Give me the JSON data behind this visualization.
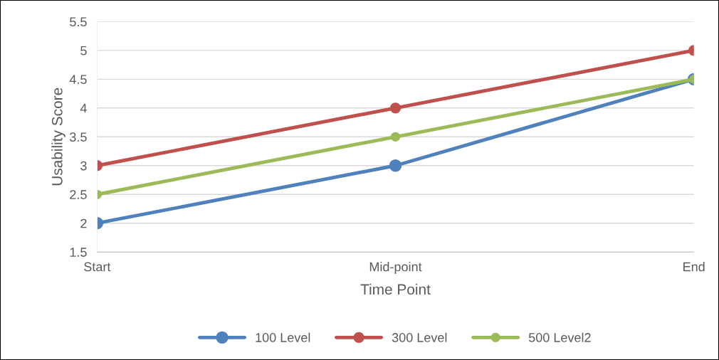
{
  "chart_data": {
    "type": "line",
    "xlabel": "Time Point",
    "ylabel": "Usability Score",
    "categories": [
      "Start",
      "Mid-point",
      "End"
    ],
    "series": [
      {
        "name": "100 Level",
        "color": "#4f81bd",
        "values": [
          2,
          3,
          4.5
        ]
      },
      {
        "name": "300 Level",
        "color": "#c0504d",
        "values": [
          3,
          4,
          5
        ]
      },
      {
        "name": "500 Level2",
        "color": "#9bbb59",
        "values": [
          2.5,
          3.5,
          4.5
        ]
      }
    ],
    "ylim": [
      1.5,
      5.5
    ],
    "yticks": [
      1.5,
      2,
      2.5,
      3,
      3.5,
      4,
      4.5,
      5,
      5.5
    ],
    "grid": "y",
    "legend": "bottom",
    "marker": "circle",
    "line_style": "solid"
  }
}
